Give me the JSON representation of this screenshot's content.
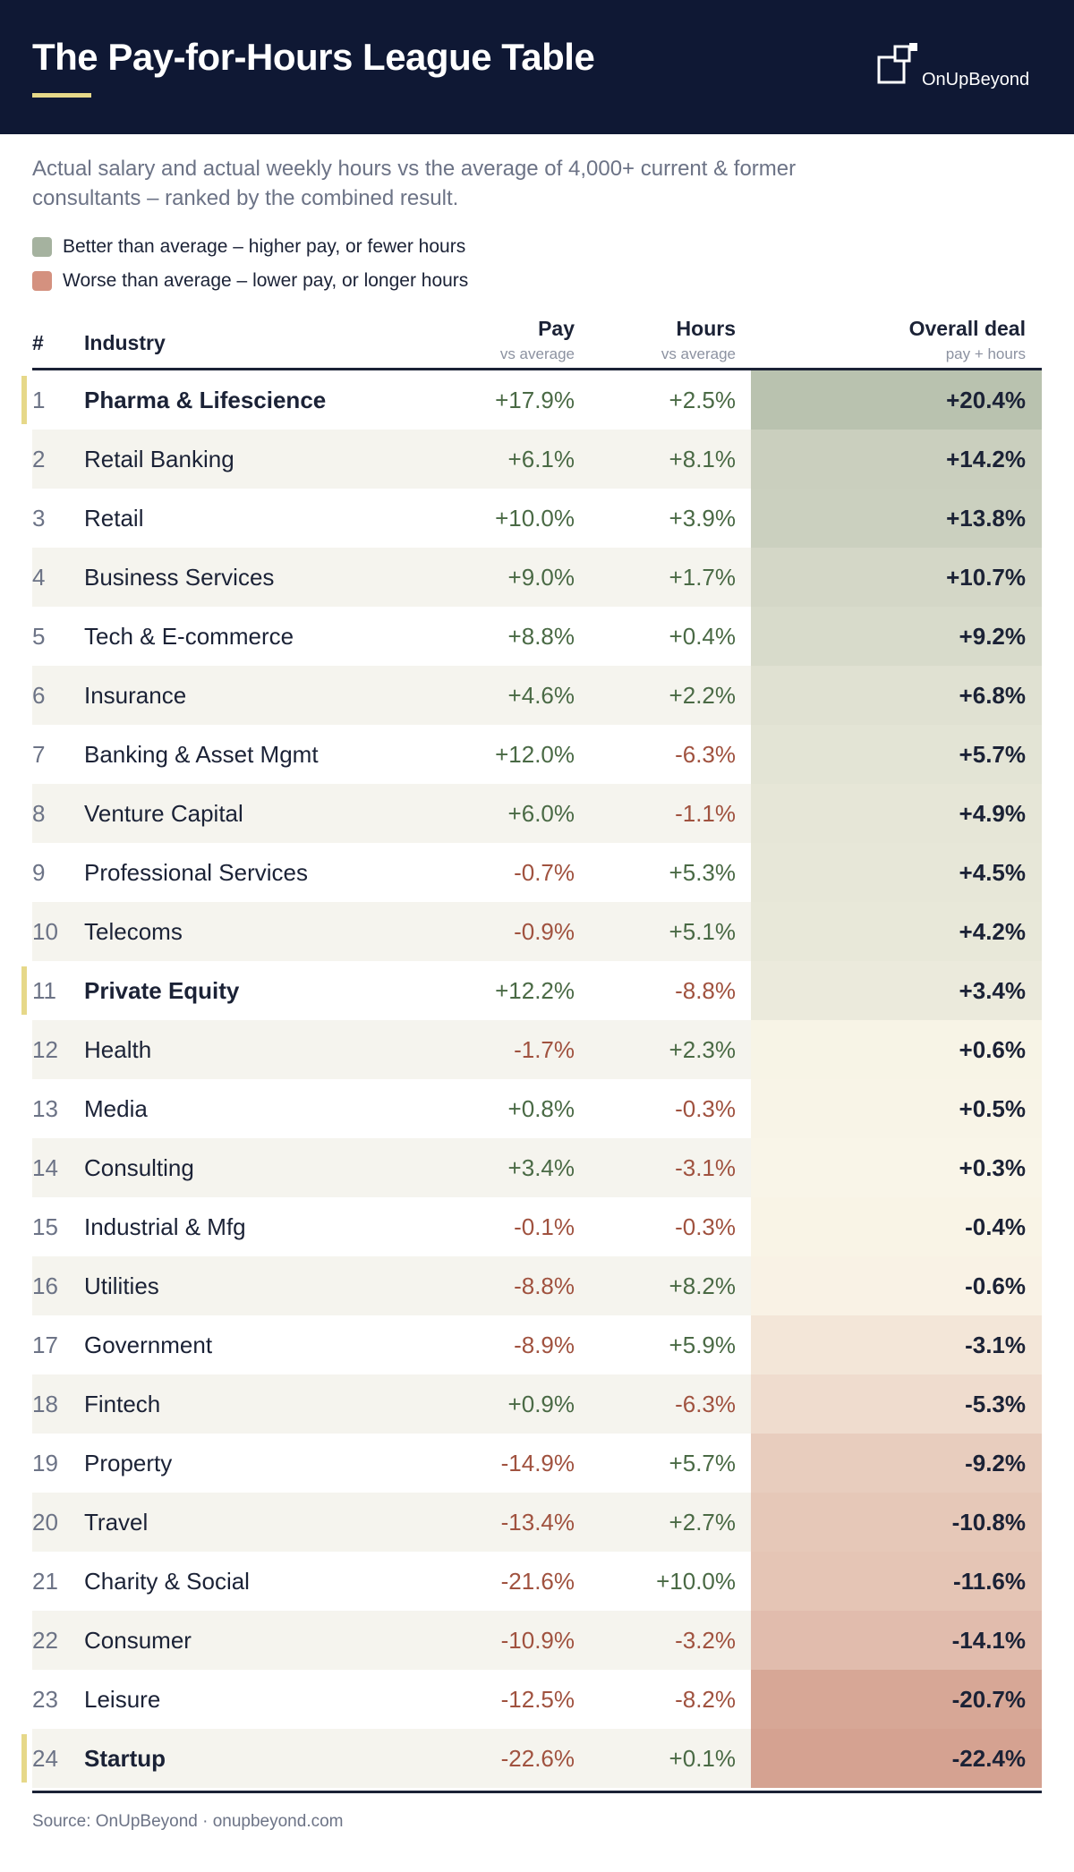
{
  "header": {
    "title": "The Pay-for-Hours League Table",
    "brand": "OnUpBeyond",
    "bg_color": "#0f1834",
    "accent_color": "#e6d889"
  },
  "subtitle": "Actual salary and actual weekly hours vs the average of 4,000+ current & former consultants – ranked by the combined result.",
  "legend": [
    {
      "label": "Better than average – higher pay, or fewer hours",
      "color": "#a5b29f"
    },
    {
      "label": "Worse than average – lower pay, or longer hours",
      "color": "#d4917f"
    }
  ],
  "columns": {
    "rank": "#",
    "industry": "Industry",
    "pay": "Pay",
    "pay_sub": "vs average",
    "hours": "Hours",
    "hours_sub": "vs average",
    "overall": "Overall deal",
    "overall_sub": "pay + hours"
  },
  "chart_data": {
    "type": "table",
    "title": "The Pay-for-Hours League Table",
    "columns": [
      "#",
      "Industry",
      "Pay",
      "Hours",
      "Overall deal"
    ],
    "rows": [
      {
        "rank": 1,
        "industry": "Pharma & Lifescience",
        "pay": "+17.9%",
        "hours": "+2.5%",
        "overall": "+20.4%",
        "overall_value": 20.4,
        "highlight": true
      },
      {
        "rank": 2,
        "industry": "Retail Banking",
        "pay": "+6.1%",
        "hours": "+8.1%",
        "overall": "+14.2%",
        "overall_value": 14.2,
        "highlight": false
      },
      {
        "rank": 3,
        "industry": "Retail",
        "pay": "+10.0%",
        "hours": "+3.9%",
        "overall": "+13.8%",
        "overall_value": 13.8,
        "highlight": false
      },
      {
        "rank": 4,
        "industry": "Business Services",
        "pay": "+9.0%",
        "hours": "+1.7%",
        "overall": "+10.7%",
        "overall_value": 10.7,
        "highlight": false
      },
      {
        "rank": 5,
        "industry": "Tech & E-commerce",
        "pay": "+8.8%",
        "hours": "+0.4%",
        "overall": "+9.2%",
        "overall_value": 9.2,
        "highlight": false
      },
      {
        "rank": 6,
        "industry": "Insurance",
        "pay": "+4.6%",
        "hours": "+2.2%",
        "overall": "+6.8%",
        "overall_value": 6.8,
        "highlight": false
      },
      {
        "rank": 7,
        "industry": "Banking & Asset Mgmt",
        "pay": "+12.0%",
        "hours": "-6.3%",
        "overall": "+5.7%",
        "overall_value": 5.7,
        "highlight": false
      },
      {
        "rank": 8,
        "industry": "Venture Capital",
        "pay": "+6.0%",
        "hours": "-1.1%",
        "overall": "+4.9%",
        "overall_value": 4.9,
        "highlight": false
      },
      {
        "rank": 9,
        "industry": "Professional Services",
        "pay": "-0.7%",
        "hours": "+5.3%",
        "overall": "+4.5%",
        "overall_value": 4.5,
        "highlight": false
      },
      {
        "rank": 10,
        "industry": "Telecoms",
        "pay": "-0.9%",
        "hours": "+5.1%",
        "overall": "+4.2%",
        "overall_value": 4.2,
        "highlight": false
      },
      {
        "rank": 11,
        "industry": "Private Equity",
        "pay": "+12.2%",
        "hours": "-8.8%",
        "overall": "+3.4%",
        "overall_value": 3.4,
        "highlight": true
      },
      {
        "rank": 12,
        "industry": "Health",
        "pay": "-1.7%",
        "hours": "+2.3%",
        "overall": "+0.6%",
        "overall_value": 0.6,
        "highlight": false
      },
      {
        "rank": 13,
        "industry": "Media",
        "pay": "+0.8%",
        "hours": "-0.3%",
        "overall": "+0.5%",
        "overall_value": 0.5,
        "highlight": false
      },
      {
        "rank": 14,
        "industry": "Consulting",
        "pay": "+3.4%",
        "hours": "-3.1%",
        "overall": "+0.3%",
        "overall_value": 0.3,
        "highlight": false
      },
      {
        "rank": 15,
        "industry": "Industrial & Mfg",
        "pay": "-0.1%",
        "hours": "-0.3%",
        "overall": "-0.4%",
        "overall_value": -0.4,
        "highlight": false
      },
      {
        "rank": 16,
        "industry": "Utilities",
        "pay": "-8.8%",
        "hours": "+8.2%",
        "overall": "-0.6%",
        "overall_value": -0.6,
        "highlight": false
      },
      {
        "rank": 17,
        "industry": "Government",
        "pay": "-8.9%",
        "hours": "+5.9%",
        "overall": "-3.1%",
        "overall_value": -3.1,
        "highlight": false
      },
      {
        "rank": 18,
        "industry": "Fintech",
        "pay": "+0.9%",
        "hours": "-6.3%",
        "overall": "-5.3%",
        "overall_value": -5.3,
        "highlight": false
      },
      {
        "rank": 19,
        "industry": "Property",
        "pay": "-14.9%",
        "hours": "+5.7%",
        "overall": "-9.2%",
        "overall_value": -9.2,
        "highlight": false
      },
      {
        "rank": 20,
        "industry": "Travel",
        "pay": "-13.4%",
        "hours": "+2.7%",
        "overall": "-10.8%",
        "overall_value": -10.8,
        "highlight": false
      },
      {
        "rank": 21,
        "industry": "Charity & Social",
        "pay": "-21.6%",
        "hours": "+10.0%",
        "overall": "-11.6%",
        "overall_value": -11.6,
        "highlight": false
      },
      {
        "rank": 22,
        "industry": "Consumer",
        "pay": "-10.9%",
        "hours": "-3.2%",
        "overall": "-14.1%",
        "overall_value": -14.1,
        "highlight": false
      },
      {
        "rank": 23,
        "industry": "Leisure",
        "pay": "-12.5%",
        "hours": "-8.2%",
        "overall": "-20.7%",
        "overall_value": -20.7,
        "highlight": false
      },
      {
        "rank": 24,
        "industry": "Startup",
        "pay": "-22.6%",
        "hours": "+0.1%",
        "overall": "-22.4%",
        "overall_value": -22.4,
        "highlight": true
      }
    ],
    "colors": {
      "positive_text": "#4a6a45",
      "negative_text": "#a0523f",
      "positive_strong": "#b9c2af",
      "neutral": "#fbf7ea",
      "negative_strong": "#d5a291",
      "row_alt": "#f5f4ee",
      "highlight_marker": "#e6d889"
    }
  },
  "footer": {
    "source": "Source: OnUpBeyond · onupbeyond.com"
  }
}
